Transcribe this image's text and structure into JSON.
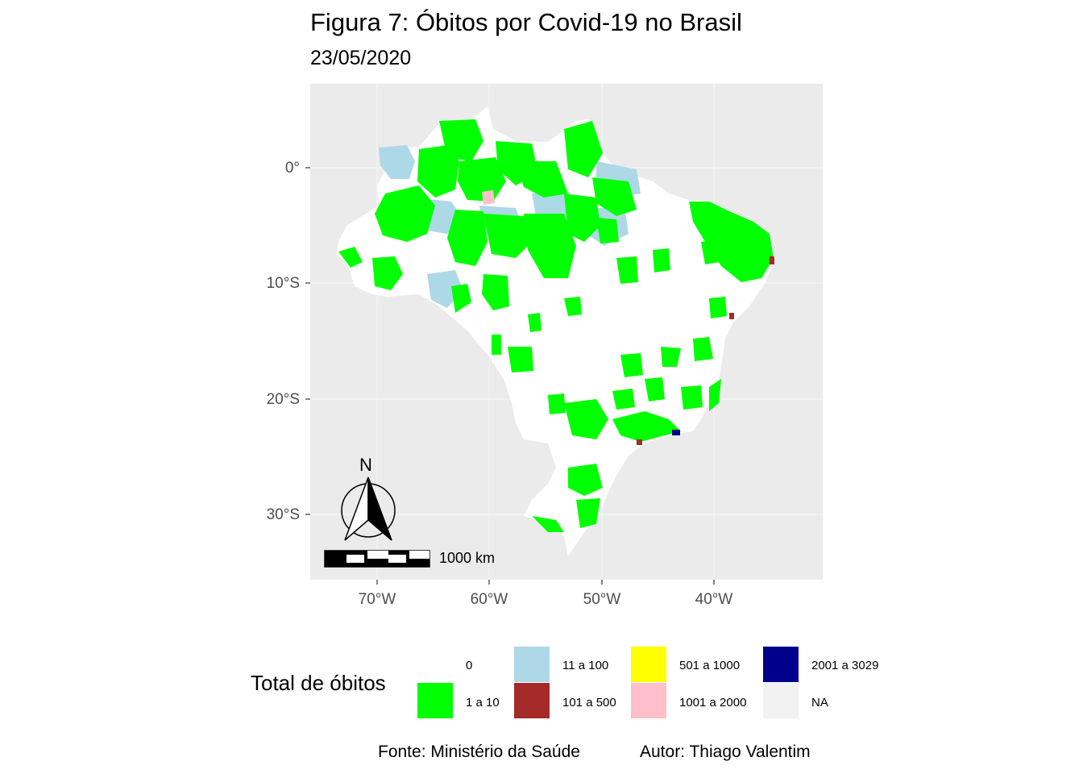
{
  "title": "Figura 7: Óbitos por Covid-19 no Brasil",
  "subtitle": "23/05/2020",
  "axes": {
    "y_ticks": [
      "0°",
      "10°S",
      "20°S",
      "30°S"
    ],
    "x_ticks": [
      "70°W",
      "60°W",
      "50°W",
      "40°W"
    ]
  },
  "north_arrow": {
    "label": "N"
  },
  "scale_bar": {
    "label": "1000 km"
  },
  "legend": {
    "title": "Total de óbitos",
    "items": [
      {
        "label": "0",
        "color": "#ffffff"
      },
      {
        "label": "1 a 10",
        "color": "#00ff00"
      },
      {
        "label": "11 a 100",
        "color": "#add8e6"
      },
      {
        "label": "101 a 500",
        "color": "#a52a2a"
      },
      {
        "label": "501 a 1000",
        "color": "#ffff00"
      },
      {
        "label": "1001 a 2000",
        "color": "#ffc0cb"
      },
      {
        "label": "2001 a 3029",
        "color": "#00008b"
      },
      {
        "label": "NA",
        "color": "#f2f2f2"
      }
    ]
  },
  "caption": {
    "source": "Fonte: Ministério da Saúde",
    "author": "Autor: Thiago Valentim"
  },
  "colors": {
    "panel": "#ebebeb",
    "grid": "#f5f5f5",
    "zero": "#ffffff",
    "low": "#00ff00",
    "mid": "#add8e6",
    "high": "#a52a2a",
    "very_high": "#ffc0cb",
    "max": "#00008b"
  }
}
